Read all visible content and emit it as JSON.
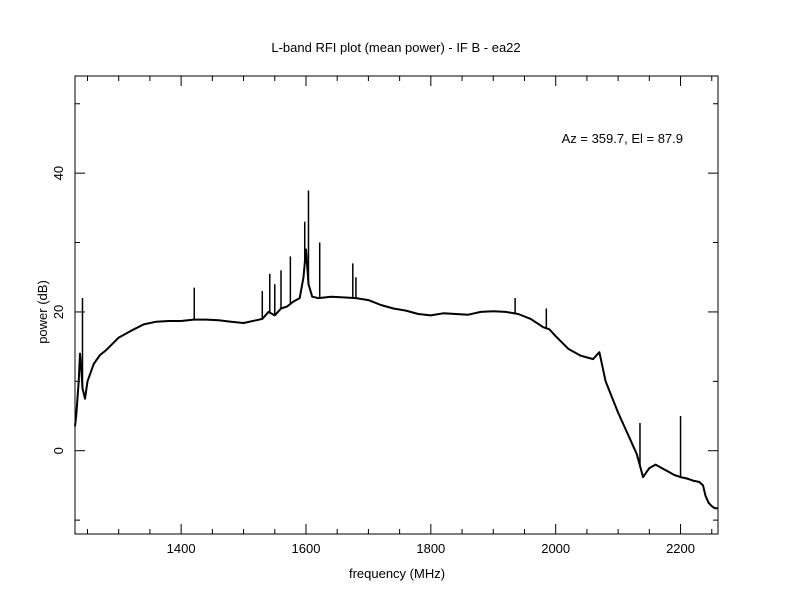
{
  "chart_data": {
    "type": "line",
    "title": "L-band RFI plot (mean power) - IF B - ea22",
    "annotation": "Az = 359.7, El = 87.9",
    "xlabel": "frequency (MHz)",
    "ylabel": "power (dB)",
    "xlim": [
      1230,
      2260
    ],
    "ylim": [
      -12,
      54
    ],
    "x_ticks": [
      1400,
      1600,
      1800,
      2000,
      2200
    ],
    "y_ticks": [
      0,
      20,
      40
    ],
    "grid": false,
    "legend": "none",
    "line_color": "#000000",
    "series": [
      {
        "x": [
          1230,
          1232,
          1236,
          1238,
          1240,
          1242,
          1246,
          1250,
          1260,
          1270,
          1280,
          1300,
          1320,
          1340,
          1360,
          1380,
          1400,
          1420,
          1440,
          1460,
          1480,
          1500,
          1520,
          1530,
          1540,
          1550,
          1560,
          1570,
          1580,
          1590,
          1596,
          1600,
          1604,
          1610,
          1620,
          1640,
          1660,
          1680,
          1700,
          1720,
          1740,
          1760,
          1780,
          1800,
          1820,
          1840,
          1860,
          1880,
          1900,
          1920,
          1940,
          1960,
          1980,
          1990,
          2000,
          2020,
          2040,
          2060,
          2070,
          2074,
          2080,
          2100,
          2120,
          2130,
          2136,
          2140,
          2150,
          2160,
          2170,
          2180,
          2190,
          2200,
          2210,
          2220,
          2230,
          2236,
          2240,
          2245,
          2250,
          2255,
          2260
        ],
        "y": [
          3.5,
          5,
          10,
          14,
          12,
          9,
          7.5,
          10,
          12.5,
          13.8,
          14.5,
          16.3,
          17.3,
          18.2,
          18.6,
          18.7,
          18.7,
          18.9,
          18.9,
          18.8,
          18.6,
          18.4,
          18.8,
          19.0,
          20.0,
          19.5,
          20.5,
          20.8,
          21.5,
          22.0,
          25.0,
          29.0,
          24.0,
          22.2,
          22.0,
          22.2,
          22.1,
          22.0,
          21.7,
          21.0,
          20.5,
          20.2,
          19.7,
          19.5,
          19.8,
          19.7,
          19.6,
          20.0,
          20.1,
          20.0,
          19.7,
          19.0,
          17.8,
          17.5,
          16.5,
          14.7,
          13.7,
          13.2,
          14.2,
          12.5,
          10.0,
          5.5,
          1.5,
          -0.5,
          -2.5,
          -3.8,
          -2.5,
          -2.0,
          -2.5,
          -3.0,
          -3.5,
          -3.8,
          -4.0,
          -4.3,
          -4.5,
          -5.0,
          -6.5,
          -7.5,
          -8.0,
          -8.3,
          -8.3
        ]
      }
    ],
    "rfi_spikes": [
      {
        "x": 1242,
        "y": 22.0
      },
      {
        "x": 1421,
        "y": 23.5
      },
      {
        "x": 1530,
        "y": 23.0
      },
      {
        "x": 1542,
        "y": 25.5
      },
      {
        "x": 1550,
        "y": 24.0
      },
      {
        "x": 1560,
        "y": 26.0
      },
      {
        "x": 1575,
        "y": 28.0
      },
      {
        "x": 1598,
        "y": 33.0
      },
      {
        "x": 1604,
        "y": 37.5
      },
      {
        "x": 1622,
        "y": 30.0
      },
      {
        "x": 1675,
        "y": 27.0
      },
      {
        "x": 1680,
        "y": 25.0
      },
      {
        "x": 1935,
        "y": 22.0
      },
      {
        "x": 1985,
        "y": 20.5
      },
      {
        "x": 2135,
        "y": 4.0
      },
      {
        "x": 2200,
        "y": 5.0
      }
    ]
  }
}
